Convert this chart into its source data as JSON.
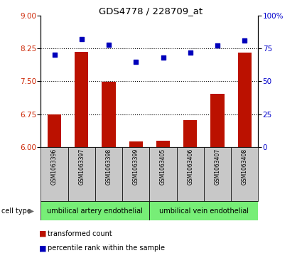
{
  "title": "GDS4778 / 228709_at",
  "samples": [
    "GSM1063396",
    "GSM1063397",
    "GSM1063398",
    "GSM1063399",
    "GSM1063405",
    "GSM1063406",
    "GSM1063407",
    "GSM1063408"
  ],
  "transformed_count": [
    6.75,
    8.17,
    7.49,
    6.13,
    6.15,
    6.62,
    7.22,
    8.15
  ],
  "percentile_rank": [
    70,
    82,
    78,
    65,
    68,
    72,
    77,
    81
  ],
  "ylim_left": [
    6,
    9
  ],
  "ylim_right": [
    0,
    100
  ],
  "yticks_left": [
    6,
    6.75,
    7.5,
    8.25,
    9
  ],
  "yticks_right": [
    0,
    25,
    50,
    75,
    100
  ],
  "ytick_labels_right": [
    "0",
    "25",
    "50",
    "75",
    "100%"
  ],
  "cell_type_groups": [
    {
      "label": "umbilical artery endothelial",
      "start": 0,
      "end": 3
    },
    {
      "label": "umbilical vein endothelial",
      "start": 4,
      "end": 7
    }
  ],
  "bar_color": "#bb1100",
  "dot_color": "#0000bb",
  "bg_sample_labels": "#c8c8c8",
  "bg_cell_type": "#77ee77",
  "left_axis_color": "#cc2200",
  "right_axis_color": "#0000cc",
  "hline_values": [
    6.75,
    7.5,
    8.25
  ],
  "bar_width": 0.5
}
